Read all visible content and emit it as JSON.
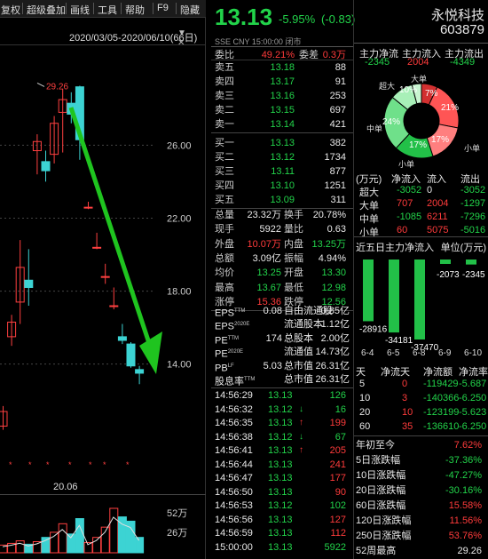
{
  "toolbar": {
    "items": [
      "复权",
      "超级叠加",
      "画线",
      "工具",
      "帮助",
      "F9",
      "隐藏"
    ]
  },
  "kchart": {
    "date_range": "2020/03/05-2020/06/10(66日)",
    "max_label": "29.26",
    "y_ticks": [
      "26.00",
      "22.00",
      "18.00",
      "14.00"
    ],
    "x_label": "20.06",
    "vol_ticks": [
      "52万",
      "26万"
    ]
  },
  "chart_data": {
    "type": "candlestick",
    "title": "",
    "ylim": [
      11.5,
      30.5
    ],
    "candles": [
      {
        "o": 10.6,
        "h": 11.7,
        "l": 10.4,
        "c": 11.4
      },
      {
        "o": 15.5,
        "h": 16.7,
        "l": 15.0,
        "c": 16.3
      },
      {
        "o": 17.4,
        "h": 20.8,
        "l": 16.2,
        "c": 19.3
      },
      {
        "o": 18.6,
        "h": 20.3,
        "l": 17.2,
        "c": 18.2
      },
      {
        "o": 25.7,
        "h": 26.6,
        "l": 24.4,
        "c": 26.2
      },
      {
        "o": 25.1,
        "h": 25.7,
        "l": 24.0,
        "c": 24.6
      },
      {
        "o": 25.5,
        "h": 27.6,
        "l": 25.0,
        "c": 27.2
      },
      {
        "o": 27.8,
        "h": 29.1,
        "l": 25.6,
        "c": 28.5
      },
      {
        "o": 28.3,
        "h": 28.9,
        "l": 27.2,
        "c": 27.7
      },
      {
        "o": 29.2,
        "h": 29.26,
        "l": 25.2,
        "c": 26.3
      },
      {
        "o": 22.6,
        "h": 22.9,
        "l": 22.5,
        "c": 22.6
      },
      {
        "o": 20.4,
        "h": 21.2,
        "l": 20.3,
        "c": 20.4
      },
      {
        "o": 18.8,
        "h": 19.5,
        "l": 18.4,
        "c": 18.8
      },
      {
        "o": 17.2,
        "h": 18.2,
        "l": 17.0,
        "c": 17.2
      },
      {
        "o": 15.5,
        "h": 16.2,
        "l": 15.1,
        "c": 15.3
      },
      {
        "o": 15.1,
        "h": 15.2,
        "l": 13.8,
        "c": 13.9
      },
      {
        "o": 13.7,
        "h": 13.9,
        "l": 12.9,
        "c": 13.5
      }
    ],
    "volumes": [
      9,
      11,
      14,
      10,
      13,
      18,
      24,
      34,
      22,
      40,
      12,
      18,
      30,
      52,
      42,
      37,
      18
    ]
  },
  "quote": {
    "price": "13.13",
    "change_pct": "-5.95%",
    "change": "(-0.83)",
    "name": "永悦科技",
    "code": "603879",
    "market": "SSE",
    "currency": "CNY",
    "time": "15:00:00",
    "status": "闭市"
  },
  "book": {
    "wb_label": "委比",
    "wb_val": "49.21%",
    "wc_label": "委差",
    "wc_val": "0.3万",
    "asks": [
      {
        "l": "卖五",
        "p": "13.18",
        "v": "88"
      },
      {
        "l": "卖四",
        "p": "13.17",
        "v": "91"
      },
      {
        "l": "卖三",
        "p": "13.16",
        "v": "253"
      },
      {
        "l": "卖二",
        "p": "13.15",
        "v": "697"
      },
      {
        "l": "卖一",
        "p": "13.14",
        "v": "421"
      }
    ],
    "bids": [
      {
        "l": "买一",
        "p": "13.13",
        "v": "382"
      },
      {
        "l": "买二",
        "p": "13.12",
        "v": "1734"
      },
      {
        "l": "买三",
        "p": "13.11",
        "v": "877"
      },
      {
        "l": "买四",
        "p": "13.10",
        "v": "1251"
      },
      {
        "l": "买五",
        "p": "13.09",
        "v": "311"
      }
    ]
  },
  "stats": [
    [
      "总量",
      "23.32万",
      "换手",
      "20.78%",
      "w",
      "w"
    ],
    [
      "现手",
      "5922",
      "量比",
      "0.63",
      "w",
      "w"
    ],
    [
      "外盘",
      "10.07万",
      "内盘",
      "13.25万",
      "r",
      "g"
    ],
    [
      "总额",
      "3.09亿",
      "振幅",
      "4.94%",
      "w",
      "w"
    ],
    [
      "均价",
      "13.25",
      "开盘",
      "13.30",
      "g",
      "g"
    ],
    [
      "最高",
      "13.67",
      "最低",
      "12.98",
      "g",
      "g"
    ],
    [
      "涨停",
      "15.36",
      "跌停",
      "12.56",
      "r",
      "g"
    ]
  ],
  "fin": [
    [
      "EPS",
      "TTM",
      "0.08",
      "自由流通股",
      "0.85亿"
    ],
    [
      "EPS",
      "2020E",
      "",
      "流通股本",
      "1.12亿"
    ],
    [
      "PE",
      "TTM",
      "174",
      "总股本",
      "2.00亿"
    ],
    [
      "PE",
      "2020E",
      "",
      "流通值",
      "14.73亿"
    ],
    [
      "PB",
      "LF",
      "5.03",
      "总市值",
      "26.31亿"
    ],
    [
      "股息率",
      "TTM",
      "",
      "总市值",
      "26.31亿"
    ]
  ],
  "ticks": [
    [
      "14:56:29",
      "13.13",
      "",
      "126",
      "g"
    ],
    [
      "14:56:32",
      "13.12",
      "↓",
      "16",
      "g"
    ],
    [
      "14:56:35",
      "13.13",
      "↑",
      "199",
      "r"
    ],
    [
      "14:56:38",
      "13.12",
      "↓",
      "67",
      "g"
    ],
    [
      "14:56:41",
      "13.13",
      "↑",
      "205",
      "r"
    ],
    [
      "14:56:44",
      "13.13",
      "",
      "241",
      "r"
    ],
    [
      "14:56:47",
      "13.13",
      "",
      "177",
      "r"
    ],
    [
      "14:56:50",
      "13.13",
      "",
      "90",
      "r"
    ],
    [
      "14:56:53",
      "13.12",
      "",
      "102",
      "g"
    ],
    [
      "14:56:56",
      "13.13",
      "",
      "127",
      "r"
    ],
    [
      "14:56:59",
      "13.13",
      "",
      "112",
      "r"
    ],
    [
      "15:00:00",
      "13.13",
      "",
      "5922",
      "g"
    ]
  ],
  "flow": {
    "h": [
      "主力净流",
      "主力流入",
      "主力流出"
    ],
    "v": [
      "-2345",
      "2004",
      "-4349"
    ],
    "pie": {
      "labels": [
        "超大",
        "大单",
        "中单",
        "小单"
      ],
      "pct": [
        "7%",
        "21%",
        "17%",
        "24%",
        "17%",
        "10%"
      ],
      "slices": [
        {
          "deg": 25,
          "c": "#d23030"
        },
        {
          "deg": 76,
          "c": "#ff5555"
        },
        {
          "deg": 61,
          "c": "#ff7f7f"
        },
        {
          "deg": 61,
          "c": "#22c048"
        },
        {
          "deg": 86,
          "c": "#6fe08a"
        },
        {
          "deg": 36,
          "c": "#a8f0b8"
        },
        {
          "deg": 15,
          "c": "#c8f5d0"
        }
      ]
    },
    "t2h": [
      "(万元)",
      "净流入",
      "流入",
      "流出"
    ],
    "t2": [
      [
        "超大",
        "-3052",
        "0",
        "-3052"
      ],
      [
        "大单",
        "707",
        "2004",
        "-1297"
      ],
      [
        "中单",
        "-1085",
        "6211",
        "-7296"
      ],
      [
        "小单",
        "60",
        "5075",
        "-5016"
      ]
    ],
    "five_title": "近五日主力净流入",
    "unit": "单位(万元)",
    "five": [
      {
        "d": "6-4",
        "v": -28916
      },
      {
        "d": "6-5",
        "v": -34181
      },
      {
        "d": "6-8",
        "v": -37470
      },
      {
        "d": "6-9",
        "v": -2073
      },
      {
        "d": "6-10",
        "v": -2345
      }
    ],
    "t3h": [
      "天",
      "净流天",
      "净流额",
      "净流率"
    ],
    "t3": [
      [
        "5",
        "0",
        "-119429",
        "-5.687"
      ],
      [
        "10",
        "3",
        "-140366",
        "-6.250"
      ],
      [
        "20",
        "10",
        "-123199",
        "-5.623"
      ],
      [
        "60",
        "35",
        "-136610",
        "-6.250"
      ]
    ],
    "perf": [
      [
        "年初至今",
        "7.62%",
        "r"
      ],
      [
        "5日涨跌幅",
        "-37.36%",
        "g"
      ],
      [
        "10日涨跌幅",
        "-47.27%",
        "g"
      ],
      [
        "20日涨跌幅",
        "-30.16%",
        "g"
      ],
      [
        "60日涨跌幅",
        "15.58%",
        "r"
      ],
      [
        "120日涨跌幅",
        "11.56%",
        "r"
      ],
      [
        "250日涨跌幅",
        "53.76%",
        "r"
      ],
      [
        "52周最高",
        "29.26",
        "w"
      ]
    ]
  }
}
